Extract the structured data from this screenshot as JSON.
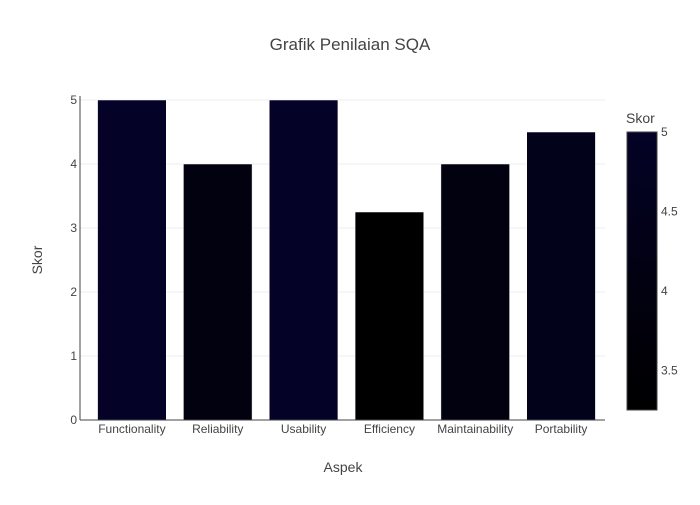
{
  "chart_data": {
    "type": "bar",
    "title": "Grafik Penilaian SQA",
    "xlabel": "Aspek",
    "ylabel": "Skor",
    "categories": [
      "Functionality",
      "Reliability",
      "Usability",
      "Efficiency",
      "Maintainability",
      "Portability"
    ],
    "values": [
      5,
      4,
      5,
      3.25,
      4,
      4.5
    ],
    "ylim": [
      0,
      5
    ],
    "yticks": [
      "0",
      "1",
      "2",
      "3",
      "4",
      "5"
    ],
    "grid": true,
    "colorbar": {
      "title": "Skor",
      "range": [
        3.25,
        5
      ],
      "ticks": [
        "3.5",
        "4",
        "4.5",
        "5"
      ],
      "tick_values": [
        3.5,
        4,
        4.5,
        5
      ],
      "color_low": "#000000",
      "color_high": "#0d0887"
    }
  }
}
